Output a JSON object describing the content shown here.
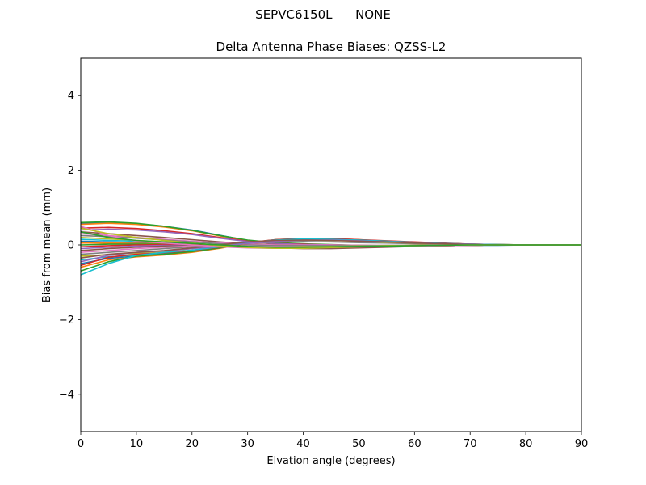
{
  "figure": {
    "suptitle": "SEPVC6150L      NONE"
  },
  "chart_data": {
    "type": "line",
    "title": "Delta Antenna Phase Biases: QZSS-L2",
    "xlabel": "Elvation angle (degrees)",
    "ylabel": "Bias from mean (mm)",
    "xlim": [
      0,
      90
    ],
    "ylim": [
      -5,
      5
    ],
    "xticks": [
      0,
      10,
      20,
      30,
      40,
      50,
      60,
      70,
      80,
      90
    ],
    "yticks": [
      -4,
      -2,
      0,
      2,
      4
    ],
    "grid": false,
    "legend": "none",
    "x": [
      0,
      5,
      10,
      15,
      20,
      25,
      30,
      35,
      40,
      45,
      50,
      55,
      60,
      65,
      70,
      75,
      80,
      85,
      90
    ],
    "series": [
      {
        "color": "#1f77b4",
        "values": [
          0.58,
          0.6,
          0.57,
          0.5,
          0.4,
          0.26,
          0.12,
          0.05,
          0.02,
          0.0,
          -0.02,
          -0.03,
          -0.03,
          -0.02,
          -0.01,
          -0.01,
          0.0,
          0.0,
          0.0
        ]
      },
      {
        "color": "#ff7f0e",
        "values": [
          0.55,
          0.58,
          0.55,
          0.48,
          0.38,
          0.24,
          0.11,
          0.05,
          0.02,
          0.0,
          -0.02,
          -0.02,
          -0.02,
          -0.02,
          -0.01,
          0.0,
          0.0,
          0.0,
          0.0
        ]
      },
      {
        "color": "#2ca02c",
        "values": [
          0.6,
          0.62,
          0.58,
          0.5,
          0.39,
          0.25,
          0.13,
          0.06,
          0.03,
          0.01,
          -0.01,
          -0.02,
          -0.02,
          -0.01,
          -0.01,
          0.0,
          0.0,
          0.0,
          0.0
        ]
      },
      {
        "color": "#d62728",
        "values": [
          0.45,
          0.47,
          0.44,
          0.38,
          0.3,
          0.2,
          0.1,
          0.04,
          0.02,
          0.0,
          -0.01,
          -0.02,
          -0.02,
          -0.01,
          0.0,
          0.0,
          0.0,
          0.0,
          0.0
        ]
      },
      {
        "color": "#9467bd",
        "values": [
          0.4,
          0.42,
          0.4,
          0.35,
          0.28,
          0.18,
          0.09,
          0.04,
          0.01,
          0.0,
          -0.01,
          -0.02,
          -0.01,
          -0.01,
          0.0,
          0.0,
          0.0,
          0.0,
          0.0
        ]
      },
      {
        "color": "#8c564b",
        "values": [
          0.35,
          0.3,
          0.25,
          0.2,
          0.14,
          0.08,
          0.03,
          0.01,
          0.0,
          -0.01,
          -0.02,
          -0.02,
          -0.02,
          -0.01,
          0.0,
          0.0,
          0.0,
          0.0,
          0.0
        ]
      },
      {
        "color": "#e377c2",
        "values": [
          0.3,
          0.25,
          0.2,
          0.15,
          0.1,
          0.05,
          0.02,
          0.0,
          0.0,
          0.0,
          -0.01,
          -0.01,
          -0.01,
          0.0,
          0.0,
          0.0,
          0.0,
          0.0,
          0.0
        ]
      },
      {
        "color": "#7f7f7f",
        "values": [
          0.25,
          0.22,
          0.18,
          0.13,
          0.08,
          0.03,
          0.0,
          -0.02,
          -0.02,
          -0.02,
          -0.02,
          -0.01,
          -0.01,
          0.0,
          0.0,
          0.0,
          0.0,
          0.0,
          0.0
        ]
      },
      {
        "color": "#bcbd22",
        "values": [
          0.2,
          0.16,
          0.12,
          0.08,
          0.04,
          0.0,
          -0.03,
          -0.05,
          -0.05,
          -0.04,
          -0.03,
          -0.02,
          -0.01,
          0.0,
          0.0,
          0.0,
          0.0,
          0.0,
          0.0
        ]
      },
      {
        "color": "#17becf",
        "values": [
          0.15,
          0.12,
          0.1,
          0.07,
          0.03,
          0.0,
          -0.03,
          -0.05,
          -0.06,
          -0.05,
          -0.04,
          -0.03,
          -0.02,
          -0.01,
          0.0,
          0.0,
          0.0,
          0.0,
          0.0
        ]
      },
      {
        "color": "#1f77b4",
        "values": [
          0.1,
          0.08,
          0.06,
          0.05,
          0.02,
          -0.01,
          -0.04,
          -0.07,
          -0.08,
          -0.08,
          -0.06,
          -0.04,
          -0.03,
          -0.02,
          -0.01,
          0.0,
          0.0,
          0.0,
          0.0
        ]
      },
      {
        "color": "#ff7f0e",
        "values": [
          0.05,
          0.05,
          0.04,
          0.03,
          0.01,
          -0.02,
          -0.05,
          -0.07,
          -0.08,
          -0.07,
          -0.06,
          -0.04,
          -0.03,
          -0.02,
          -0.01,
          0.0,
          0.0,
          0.0,
          0.0
        ]
      },
      {
        "color": "#2ca02c",
        "values": [
          0.0,
          0.02,
          0.02,
          0.02,
          0.0,
          -0.03,
          -0.06,
          -0.08,
          -0.09,
          -0.08,
          -0.06,
          -0.05,
          -0.03,
          -0.02,
          -0.01,
          0.0,
          0.0,
          0.0,
          0.0
        ]
      },
      {
        "color": "#d62728",
        "values": [
          -0.05,
          -0.02,
          0.0,
          0.01,
          0.0,
          -0.02,
          -0.05,
          -0.07,
          -0.07,
          -0.06,
          -0.05,
          -0.04,
          -0.03,
          -0.02,
          -0.01,
          0.0,
          0.0,
          0.0,
          0.0
        ]
      },
      {
        "color": "#9467bd",
        "values": [
          -0.1,
          -0.06,
          -0.03,
          -0.01,
          -0.01,
          -0.03,
          -0.06,
          -0.08,
          -0.09,
          -0.09,
          -0.07,
          -0.05,
          -0.03,
          -0.02,
          -0.01,
          0.0,
          0.0,
          0.0,
          0.0
        ]
      },
      {
        "color": "#8c564b",
        "values": [
          -0.15,
          -0.1,
          -0.06,
          -0.03,
          -0.02,
          -0.03,
          -0.06,
          -0.08,
          -0.1,
          -0.1,
          -0.08,
          -0.06,
          -0.04,
          -0.02,
          -0.01,
          0.0,
          0.0,
          0.0,
          0.0
        ]
      },
      {
        "color": "#e377c2",
        "values": [
          -0.2,
          -0.15,
          -0.1,
          -0.06,
          -0.03,
          -0.02,
          -0.03,
          -0.05,
          -0.06,
          -0.06,
          -0.05,
          -0.04,
          -0.03,
          -0.02,
          -0.01,
          0.0,
          0.0,
          0.0,
          0.0
        ]
      },
      {
        "color": "#7f7f7f",
        "values": [
          -0.25,
          -0.2,
          -0.15,
          -0.1,
          -0.05,
          0.0,
          0.05,
          0.08,
          0.09,
          0.08,
          0.06,
          0.05,
          0.03,
          0.02,
          0.01,
          0.0,
          0.0,
          0.0,
          0.0
        ]
      },
      {
        "color": "#bcbd22",
        "values": [
          -0.3,
          -0.26,
          -0.22,
          -0.17,
          -0.1,
          -0.02,
          0.06,
          0.11,
          0.13,
          0.12,
          0.1,
          0.07,
          0.05,
          0.03,
          0.01,
          0.0,
          0.0,
          0.0,
          0.0
        ]
      },
      {
        "color": "#17becf",
        "values": [
          -0.4,
          -0.32,
          -0.27,
          -0.22,
          -0.14,
          -0.05,
          0.05,
          0.12,
          0.15,
          0.15,
          0.12,
          0.09,
          0.06,
          0.03,
          0.01,
          0.0,
          0.0,
          0.0,
          0.0
        ]
      },
      {
        "color": "#1f77b4",
        "values": [
          -0.5,
          -0.36,
          -0.3,
          -0.25,
          -0.17,
          -0.07,
          0.05,
          0.13,
          0.16,
          0.16,
          0.13,
          0.1,
          0.07,
          0.04,
          0.02,
          0.0,
          0.0,
          0.0,
          0.0
        ]
      },
      {
        "color": "#ff7f0e",
        "values": [
          -0.6,
          -0.4,
          -0.32,
          -0.27,
          -0.2,
          -0.09,
          0.04,
          0.13,
          0.17,
          0.17,
          0.14,
          0.1,
          0.07,
          0.04,
          0.02,
          0.01,
          0.0,
          0.0,
          0.0
        ]
      },
      {
        "color": "#2ca02c",
        "values": [
          -0.7,
          -0.45,
          -0.3,
          -0.25,
          -0.18,
          -0.08,
          0.05,
          0.14,
          0.17,
          0.16,
          0.13,
          0.1,
          0.07,
          0.04,
          0.02,
          0.01,
          0.0,
          0.0,
          0.0
        ]
      },
      {
        "color": "#d62728",
        "values": [
          -0.55,
          -0.33,
          -0.25,
          -0.21,
          -0.15,
          -0.06,
          0.06,
          0.14,
          0.17,
          0.17,
          0.14,
          0.11,
          0.08,
          0.05,
          0.02,
          0.01,
          0.0,
          0.0,
          0.0
        ]
      },
      {
        "color": "#17becf",
        "values": [
          -0.8,
          -0.5,
          -0.28,
          -0.2,
          -0.14,
          -0.05,
          0.06,
          0.13,
          0.16,
          0.15,
          0.13,
          0.1,
          0.07,
          0.04,
          0.02,
          0.01,
          0.0,
          0.0,
          0.0
        ]
      },
      {
        "color": "#9467bd",
        "values": [
          -0.45,
          -0.28,
          -0.2,
          -0.16,
          -0.1,
          -0.04,
          0.04,
          0.1,
          0.13,
          0.13,
          0.11,
          0.08,
          0.06,
          0.03,
          0.02,
          0.0,
          0.0,
          0.0,
          0.0
        ]
      },
      {
        "color": "#8c564b",
        "values": [
          -0.35,
          -0.25,
          -0.2,
          -0.15,
          -0.08,
          0.0,
          0.08,
          0.12,
          0.13,
          0.12,
          0.1,
          0.08,
          0.05,
          0.03,
          0.01,
          0.0,
          0.0,
          0.0,
          0.0
        ]
      },
      {
        "color": "#e377c2",
        "values": [
          0.5,
          0.25,
          0.1,
          0.05,
          0.0,
          -0.05,
          -0.08,
          -0.09,
          -0.08,
          -0.06,
          -0.04,
          -0.03,
          -0.02,
          -0.01,
          0.0,
          0.0,
          0.0,
          0.0,
          0.0
        ]
      },
      {
        "color": "#bcbd22",
        "values": [
          0.45,
          0.3,
          0.2,
          0.12,
          0.05,
          -0.02,
          -0.07,
          -0.09,
          -0.09,
          -0.07,
          -0.05,
          -0.03,
          -0.02,
          -0.01,
          0.0,
          0.0,
          0.0,
          0.0,
          0.0
        ]
      },
      {
        "color": "#2ca02c",
        "values": [
          0.35,
          0.2,
          0.12,
          0.08,
          0.04,
          0.0,
          -0.04,
          -0.06,
          -0.06,
          -0.05,
          -0.04,
          -0.03,
          -0.02,
          -0.01,
          0.0,
          0.0,
          0.0,
          0.0,
          0.0
        ]
      }
    ]
  }
}
